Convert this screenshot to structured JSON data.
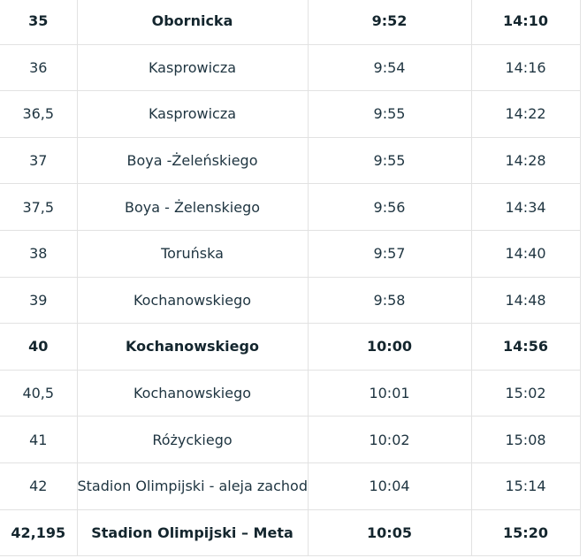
{
  "schedule": {
    "rows": [
      {
        "km": "35",
        "location": "Obornicka",
        "time1": "9:52",
        "time2": "14:10",
        "bold": true
      },
      {
        "km": "36",
        "location": "Kasprowicza",
        "time1": "9:54",
        "time2": "14:16",
        "bold": false
      },
      {
        "km": "36,5",
        "location": "Kasprowicza",
        "time1": "9:55",
        "time2": "14:22",
        "bold": false
      },
      {
        "km": "37",
        "location": "Boya -Żeleńskiego",
        "time1": "9:55",
        "time2": "14:28",
        "bold": false
      },
      {
        "km": "37,5",
        "location": "Boya - Żelenskiego",
        "time1": "9:56",
        "time2": "14:34",
        "bold": false
      },
      {
        "km": "38",
        "location": "Toruńska",
        "time1": "9:57",
        "time2": "14:40",
        "bold": false
      },
      {
        "km": "39",
        "location": "Kochanowskiego",
        "time1": "9:58",
        "time2": "14:48",
        "bold": false
      },
      {
        "km": "40",
        "location": "Kochanowskiego",
        "time1": "10:00",
        "time2": "14:56",
        "bold": true
      },
      {
        "km": "40,5",
        "location": "Kochanowskiego",
        "time1": "10:01",
        "time2": "15:02",
        "bold": false
      },
      {
        "km": "41",
        "location": "Różyckiego",
        "time1": "10:02",
        "time2": "15:08",
        "bold": false
      },
      {
        "km": "42",
        "location": "Stadion Olimpijski - aleja zachodnia",
        "time1": "10:04",
        "time2": "15:14",
        "bold": false
      },
      {
        "km": "42,195",
        "location": "Stadion Olimpijski – Meta",
        "time1": "10:05",
        "time2": "15:20",
        "bold": true
      }
    ]
  }
}
